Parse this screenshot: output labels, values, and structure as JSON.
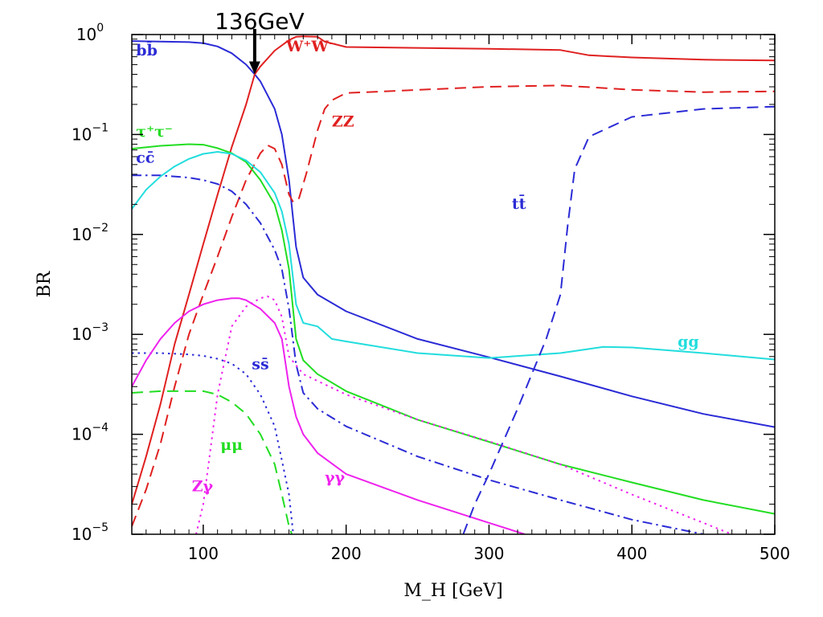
{
  "chart_data": {
    "type": "line",
    "xlabel": "M_H [GeV]",
    "ylabel": "BR",
    "xlim": [
      50,
      500
    ],
    "ylim": [
      1e-05,
      1
    ],
    "y_scale": "log",
    "grid": false,
    "x_ticks": [
      {
        "v": 100,
        "label": "100"
      },
      {
        "v": 200,
        "label": "200"
      },
      {
        "v": 300,
        "label": "300"
      },
      {
        "v": 400,
        "label": "400"
      },
      {
        "v": 500,
        "label": "500"
      }
    ],
    "y_ticks": [
      {
        "v": 1,
        "base": "10",
        "exp": "0"
      },
      {
        "v": 0.1,
        "base": "10",
        "exp": "−1"
      },
      {
        "v": 0.01,
        "base": "10",
        "exp": "−2"
      },
      {
        "v": 0.001,
        "base": "10",
        "exp": "−3"
      },
      {
        "v": 0.0001,
        "base": "10",
        "exp": "−4"
      },
      {
        "v": 1e-05,
        "base": "10",
        "exp": "−5"
      }
    ],
    "annotation": {
      "text": "136GeV",
      "x": 136,
      "y": 0.4
    },
    "series": [
      {
        "name": "bb̄",
        "color": "#2b2bd6",
        "dash": "solid",
        "label_at": [
          53,
          0.62
        ],
        "points": [
          [
            50,
            0.86
          ],
          [
            70,
            0.85
          ],
          [
            90,
            0.84
          ],
          [
            100,
            0.82
          ],
          [
            110,
            0.76
          ],
          [
            120,
            0.65
          ],
          [
            130,
            0.5
          ],
          [
            136,
            0.4
          ],
          [
            140,
            0.34
          ],
          [
            150,
            0.18
          ],
          [
            155,
            0.1
          ],
          [
            160,
            0.035
          ],
          [
            165,
            0.0075
          ],
          [
            170,
            0.0037
          ],
          [
            180,
            0.0025
          ],
          [
            200,
            0.0017
          ],
          [
            250,
            0.0009
          ],
          [
            300,
            0.00059
          ],
          [
            350,
            0.00038
          ],
          [
            400,
            0.00024
          ],
          [
            450,
            0.00016
          ],
          [
            500,
            0.000118
          ]
        ]
      },
      {
        "name": "W⁺W⁻",
        "color": "#e02020",
        "dash": "solid",
        "label_at": [
          158,
          0.68
        ],
        "points": [
          [
            50,
            2e-05
          ],
          [
            60,
            6e-05
          ],
          [
            70,
            0.0002
          ],
          [
            80,
            0.0008
          ],
          [
            90,
            0.0025
          ],
          [
            100,
            0.008
          ],
          [
            110,
            0.025
          ],
          [
            120,
            0.075
          ],
          [
            130,
            0.2
          ],
          [
            136,
            0.4
          ],
          [
            140,
            0.48
          ],
          [
            150,
            0.69
          ],
          [
            160,
            0.88
          ],
          [
            165,
            0.95
          ],
          [
            170,
            0.96
          ],
          [
            180,
            0.95
          ],
          [
            185,
            0.85
          ],
          [
            200,
            0.75
          ],
          [
            300,
            0.72
          ],
          [
            350,
            0.7
          ],
          [
            370,
            0.62
          ],
          [
            400,
            0.59
          ],
          [
            450,
            0.56
          ],
          [
            500,
            0.55
          ]
        ]
      },
      {
        "name": "ZZ",
        "color": "#e02020",
        "dash": "dashed",
        "label_at": [
          190,
          0.12
        ],
        "points": [
          [
            50,
            1.2e-05
          ],
          [
            60,
            2.8e-05
          ],
          [
            70,
            8e-05
          ],
          [
            80,
            0.0003
          ],
          [
            90,
            0.001
          ],
          [
            100,
            0.0025
          ],
          [
            110,
            0.006
          ],
          [
            120,
            0.015
          ],
          [
            130,
            0.035
          ],
          [
            140,
            0.065
          ],
          [
            145,
            0.078
          ],
          [
            150,
            0.072
          ],
          [
            155,
            0.05
          ],
          [
            160,
            0.025
          ],
          [
            163,
            0.021
          ],
          [
            167,
            0.023
          ],
          [
            172,
            0.04
          ],
          [
            180,
            0.11
          ],
          [
            185,
            0.18
          ],
          [
            190,
            0.22
          ],
          [
            200,
            0.26
          ],
          [
            300,
            0.3
          ],
          [
            350,
            0.31
          ],
          [
            400,
            0.28
          ],
          [
            450,
            0.265
          ],
          [
            500,
            0.27
          ]
        ]
      },
      {
        "name": "τ⁺τ⁻",
        "color": "#22dd22",
        "dash": "solid",
        "label_at": [
          53,
          0.095
        ],
        "points": [
          [
            50,
            0.072
          ],
          [
            70,
            0.077
          ],
          [
            90,
            0.08
          ],
          [
            100,
            0.079
          ],
          [
            110,
            0.073
          ],
          [
            120,
            0.065
          ],
          [
            130,
            0.053
          ],
          [
            140,
            0.035
          ],
          [
            150,
            0.02
          ],
          [
            155,
            0.011
          ],
          [
            160,
            0.0045
          ],
          [
            165,
            0.0009
          ],
          [
            170,
            0.00055
          ],
          [
            180,
            0.0004
          ],
          [
            200,
            0.00027
          ],
          [
            250,
            0.00014
          ],
          [
            300,
            8.4e-05
          ],
          [
            350,
            5e-05
          ],
          [
            400,
            3.3e-05
          ],
          [
            450,
            2.2e-05
          ],
          [
            500,
            1.6e-05
          ]
        ]
      },
      {
        "name": "cc̄",
        "color": "#2b2bd6",
        "dash": "dashdot",
        "label_at": [
          53,
          0.052
        ],
        "points": [
          [
            50,
            0.039
          ],
          [
            70,
            0.039
          ],
          [
            90,
            0.037
          ],
          [
            100,
            0.035
          ],
          [
            110,
            0.032
          ],
          [
            120,
            0.027
          ],
          [
            130,
            0.02
          ],
          [
            140,
            0.013
          ],
          [
            150,
            0.007
          ],
          [
            155,
            0.0045
          ],
          [
            160,
            0.0018
          ],
          [
            165,
            0.0005
          ],
          [
            170,
            0.00026
          ],
          [
            180,
            0.00018
          ],
          [
            200,
            0.00012
          ],
          [
            250,
            6e-05
          ],
          [
            300,
            3.5e-05
          ],
          [
            350,
            2.2e-05
          ],
          [
            400,
            1.4e-05
          ],
          [
            450,
            1e-05
          ]
        ]
      },
      {
        "name": "gg",
        "color": "#22dddd",
        "dash": "solid",
        "label_at": [
          432,
          0.00075
        ],
        "points": [
          [
            50,
            0.018
          ],
          [
            60,
            0.028
          ],
          [
            70,
            0.038
          ],
          [
            80,
            0.048
          ],
          [
            90,
            0.057
          ],
          [
            100,
            0.064
          ],
          [
            110,
            0.067
          ],
          [
            120,
            0.064
          ],
          [
            130,
            0.055
          ],
          [
            140,
            0.042
          ],
          [
            150,
            0.026
          ],
          [
            155,
            0.017
          ],
          [
            160,
            0.008
          ],
          [
            165,
            0.002
          ],
          [
            170,
            0.0013
          ],
          [
            180,
            0.0012
          ],
          [
            190,
            0.0009
          ],
          [
            200,
            0.00085
          ],
          [
            250,
            0.00065
          ],
          [
            300,
            0.00058
          ],
          [
            350,
            0.00065
          ],
          [
            380,
            0.00075
          ],
          [
            400,
            0.00074
          ],
          [
            450,
            0.00065
          ],
          [
            500,
            0.00056
          ]
        ]
      },
      {
        "name": "ss̄",
        "color": "#2b2bd6",
        "dash": "dotted",
        "label_at": [
          134,
          0.00045
        ],
        "points": [
          [
            50,
            0.00065
          ],
          [
            70,
            0.00065
          ],
          [
            90,
            0.00063
          ],
          [
            100,
            0.00061
          ],
          [
            110,
            0.00057
          ],
          [
            120,
            0.00051
          ],
          [
            130,
            0.0004
          ],
          [
            140,
            0.00025
          ],
          [
            150,
            0.00012
          ],
          [
            155,
            5.5e-05
          ],
          [
            160,
            2.5e-05
          ],
          [
            163,
            1e-05
          ]
        ]
      },
      {
        "name": "μμ",
        "color": "#22dd22",
        "dash": "dashed",
        "label_at": [
          112,
          7e-05
        ],
        "points": [
          [
            50,
            0.00026
          ],
          [
            70,
            0.00027
          ],
          [
            90,
            0.00027
          ],
          [
            100,
            0.00027
          ],
          [
            110,
            0.00025
          ],
          [
            120,
            0.00021
          ],
          [
            130,
            0.00016
          ],
          [
            140,
            0.0001
          ],
          [
            150,
            5e-05
          ],
          [
            155,
            2.5e-05
          ],
          [
            160,
            1.2e-05
          ],
          [
            162,
            1e-05
          ]
        ]
      },
      {
        "name": "Zγ",
        "color": "#ee22ee",
        "dash": "dotted",
        "label_at": [
          92,
          2.7e-05
        ],
        "points": [
          [
            95,
            1e-05
          ],
          [
            100,
            2e-05
          ],
          [
            105,
            7e-05
          ],
          [
            110,
            0.00025
          ],
          [
            120,
            0.0012
          ],
          [
            130,
            0.0019
          ],
          [
            140,
            0.0023
          ],
          [
            145,
            0.0024
          ],
          [
            150,
            0.0022
          ],
          [
            155,
            0.0015
          ],
          [
            160,
            0.0006
          ],
          [
            170,
            0.0004
          ],
          [
            200,
            0.00025
          ],
          [
            250,
            0.00014
          ],
          [
            300,
            8.5e-05
          ],
          [
            350,
            5e-05
          ],
          [
            400,
            2.5e-05
          ],
          [
            450,
            1.3e-05
          ],
          [
            470,
            1e-05
          ]
        ]
      },
      {
        "name": "γγ",
        "color": "#ee22ee",
        "dash": "solid",
        "label_at": [
          185,
          3.3e-05
        ],
        "points": [
          [
            50,
            0.0003
          ],
          [
            60,
            0.00055
          ],
          [
            70,
            0.0009
          ],
          [
            80,
            0.0013
          ],
          [
            90,
            0.0017
          ],
          [
            100,
            0.002
          ],
          [
            110,
            0.0022
          ],
          [
            120,
            0.0023
          ],
          [
            125,
            0.0023
          ],
          [
            130,
            0.0022
          ],
          [
            140,
            0.0018
          ],
          [
            150,
            0.0013
          ],
          [
            155,
            0.0009
          ],
          [
            160,
            0.0003
          ],
          [
            165,
            0.00015
          ],
          [
            170,
            0.0001
          ],
          [
            180,
            6.5e-05
          ],
          [
            200,
            4e-05
          ],
          [
            250,
            2.2e-05
          ],
          [
            300,
            1.3e-05
          ],
          [
            325,
            1e-05
          ]
        ]
      },
      {
        "name": "tt̄",
        "color": "#2b2bd6",
        "dash": "dashed",
        "label_at": [
          316,
          0.018
        ],
        "points": [
          [
            282,
            1e-05
          ],
          [
            290,
            2e-05
          ],
          [
            300,
            4e-05
          ],
          [
            320,
            0.00018
          ],
          [
            340,
            0.0009
          ],
          [
            350,
            0.0025
          ],
          [
            355,
            0.012
          ],
          [
            360,
            0.045
          ],
          [
            370,
            0.095
          ],
          [
            400,
            0.15
          ],
          [
            450,
            0.18
          ],
          [
            500,
            0.19
          ]
        ]
      }
    ]
  }
}
